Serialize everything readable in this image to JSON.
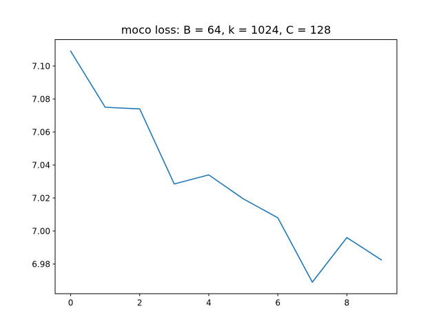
{
  "chart_data": {
    "type": "line",
    "title": "moco loss: B = 64, k = 1024, C = 128",
    "xlabel": "",
    "ylabel": "",
    "x": [
      0,
      1,
      2,
      3,
      4,
      5,
      6,
      7,
      8,
      9
    ],
    "series": [
      {
        "values": [
          7.109,
          7.075,
          7.074,
          7.0285,
          7.034,
          7.0195,
          7.008,
          6.969,
          6.996,
          6.9825
        ],
        "color": "#1f77b4"
      }
    ],
    "xlim": [
      -0.45,
      9.45
    ],
    "ylim": [
      6.962,
      7.116
    ],
    "xticks": [
      0,
      2,
      4,
      6,
      8
    ],
    "xtick_labels": [
      "0",
      "2",
      "4",
      "6",
      "8"
    ],
    "yticks": [
      6.98,
      7.0,
      7.02,
      7.04,
      7.06,
      7.08,
      7.1
    ],
    "ytick_labels": [
      "6.98",
      "7.00",
      "7.02",
      "7.04",
      "7.06",
      "7.08",
      "7.10"
    ],
    "grid": false,
    "legend": "none"
  }
}
